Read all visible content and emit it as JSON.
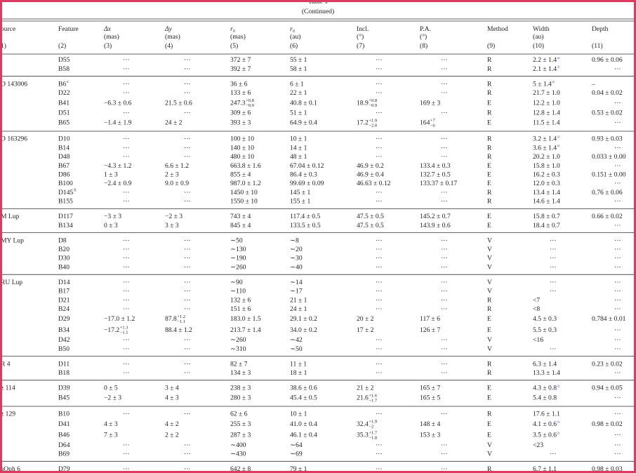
{
  "header": {
    "title": "Table 1",
    "subtitle": "(Continued)",
    "columns": [
      {
        "name": "ource",
        "number": "1)"
      },
      {
        "name": "Feature",
        "number": "(2)"
      },
      {
        "name": "Δx",
        "unit": "(mas)",
        "number": "(3)"
      },
      {
        "name": "Δy",
        "unit": "(mas)",
        "number": "(4)"
      },
      {
        "name": "r₀",
        "unit": "(mas)",
        "number": "(5)"
      },
      {
        "name": "r₀",
        "unit": "(au)",
        "number": "(6)"
      },
      {
        "name": "Incl.",
        "unit": "(°)",
        "number": "(7)"
      },
      {
        "name": "P.A.",
        "unit": "(°)",
        "number": "(8)"
      },
      {
        "name": "Method",
        "number": "(9)"
      },
      {
        "name": "Width",
        "unit": "(au)",
        "number": "(10)"
      },
      {
        "name": "Depth",
        "number": "(11)"
      }
    ]
  },
  "table": {
    "groups": [
      {
        "rows": [
          [
            "D55",
            "···",
            "···",
            "372 ± 7",
            "55 ± 1",
            "···",
            "···",
            "R",
            {
              "text": "2.2 ± 1.4",
              "note": "a"
            },
            "0.96 ± 0.06"
          ],
          [
            "B58",
            "···",
            "···",
            "392 ± 7",
            "58 ± 1",
            "···",
            "···",
            "R",
            {
              "text": "2.1 ± 1.4",
              "note": "a"
            },
            "···"
          ]
        ]
      },
      {
        "source": "D 143006",
        "rows": [
          [
            {
              "text": "B6",
              "note": "c"
            },
            "···",
            "···",
            "36 ± 6",
            "6 ± 1",
            "···",
            "···",
            "R",
            {
              "text": "5 ± 1.4",
              "note": "a"
            },
            "–"
          ],
          [
            "D22",
            "···",
            "···",
            "133 ± 6",
            "22 ± 1",
            "···",
            "···",
            "R",
            "21.7 ± 1.0",
            "0.04 ± 0.02"
          ],
          [
            "B41",
            "−6.3 ± 0.6",
            "21.5 ± 0.6",
            {
              "text": "247.3",
              "sup": "+0.8",
              "sub": "−0.9"
            },
            "40.8 ± 0.1",
            {
              "text": "18.9",
              "sup": "+0.8",
              "sub": "−0.9"
            },
            "169 ± 3",
            "E",
            "12.2 ± 1.0",
            "···"
          ],
          [
            "D51",
            "···",
            "···",
            "309 ± 6",
            "51 ± 1",
            "···",
            "···",
            "R",
            "12.8 ± 1.4",
            "0.53 ± 0.02"
          ],
          [
            "B65",
            "−1.4 ± 1.9",
            "24 ± 2",
            "393 ± 3",
            "64.9 ± 0.4",
            {
              "text": "17.2",
              "sup": "+1.9",
              "sub": "−2.0"
            },
            {
              "text": "164",
              "sup": "+7",
              "sub": "−6"
            },
            "E",
            "11.5 ± 1.4",
            "···"
          ]
        ]
      },
      {
        "source": "D 163296",
        "rows": [
          [
            "D10",
            "···",
            "···",
            "100 ± 10",
            "10 ± 1",
            "···",
            "···",
            "R",
            {
              "text": "3.2 ± 1.4",
              "note": "a"
            },
            "0.93 ± 0.03"
          ],
          [
            "B14",
            "···",
            "···",
            "140 ± 10",
            "14 ± 1",
            "···",
            "···",
            "R",
            {
              "text": "3.6 ± 1.4",
              "note": "a"
            },
            "···"
          ],
          [
            "D48",
            "···",
            "···",
            "480 ± 10",
            "48 ± 1",
            "···",
            "···",
            "R",
            "20.2 ± 1.0",
            "0.033 ± 0.00"
          ],
          [
            "B67",
            "−4.3 ± 1.2",
            "6.6 ± 1.2",
            "663.8 ± 1.6",
            "67.04 ± 0.12",
            "46.9 ± 0.2",
            "133.4 ± 0.3",
            "E",
            "15.8 ± 1.0",
            "···"
          ],
          [
            "D86",
            "1 ± 3",
            "2 ± 3",
            "855 ± 4",
            "86.4 ± 0.3",
            "46.9 ± 0.4",
            "132.7 ± 0.5",
            "E",
            "16.2 ± 0.3",
            "0.151 ± 0.00"
          ],
          [
            "B100",
            "−2.4 ± 0.9",
            "9.0 ± 0.9",
            "987.0 ± 1.2",
            "99.69 ± 0.09",
            "46.63 ± 0.12",
            "133.37 ± 0.17",
            "E",
            "12.0 ± 0.3",
            "···"
          ],
          [
            {
              "text": "D145",
              "note": "b"
            },
            "···",
            "···",
            "1450 ± 10",
            "145 ± 1",
            "···",
            "···",
            "R",
            "13.4 ± 1.4",
            "0.76 ± 0.06"
          ],
          [
            "B155",
            "···",
            "···",
            "1550 ± 10",
            "155 ± 1",
            "···",
            "···",
            "R",
            "14.6 ± 1.4",
            "···"
          ]
        ]
      },
      {
        "source": "M Lup",
        "rows": [
          [
            "D117",
            "−3 ± 3",
            "−2 ± 3",
            "743 ± 4",
            "117.4 ± 0.5",
            "47.5 ± 0.5",
            "145.2 ± 0.7",
            "E",
            "15.8 ± 0.7",
            "0.66 ± 0.02"
          ],
          [
            "B134",
            "0 ± 3",
            "3 ± 3",
            "845 ± 4",
            "133.5 ± 0.5",
            "47.5 ± 0.5",
            "143.9 ± 0.6",
            "E",
            "18.4 ± 0.7",
            "···"
          ]
        ]
      },
      {
        "source": "MY Lup",
        "rows": [
          [
            "D8",
            "···",
            "···",
            "∼50",
            "∼8",
            "···",
            "···",
            "V",
            "···",
            "···"
          ],
          [
            "B20",
            "···",
            "···",
            "∼130",
            "∼20",
            "···",
            "···",
            "V",
            "···",
            "···"
          ],
          [
            "D30",
            "···",
            "···",
            "∼190",
            "∼30",
            "···",
            "···",
            "V",
            "···",
            "···"
          ],
          [
            "B40",
            "···",
            "···",
            "∼260",
            "∼40",
            "···",
            "···",
            "V",
            "···",
            "···"
          ]
        ]
      },
      {
        "source": "RU Lup",
        "rows": [
          [
            "D14",
            "···",
            "···",
            "∼90",
            "∼14",
            "···",
            "···",
            "V",
            "···",
            "···"
          ],
          [
            "B17",
            "···",
            "···",
            "∼110",
            "∼17",
            "···",
            "···",
            "V",
            "···",
            "···"
          ],
          [
            "D21",
            "···",
            "···",
            "132 ± 6",
            "21 ± 1",
            "···",
            "···",
            "R",
            "<7",
            "···"
          ],
          [
            "B24",
            "···",
            "···",
            "151 ± 6",
            "24 ± 1",
            "···",
            "···",
            "R",
            "<8",
            "···"
          ],
          [
            "D29",
            "−17.0 ± 1.2",
            {
              "text": "87.8",
              "sup": "+1.2",
              "sub": "−1.1"
            },
            "183.0 ± 1.5",
            "29.1 ± 0.2",
            "20 ± 2",
            "117 ± 6",
            "E",
            "4.5 ± 0.3",
            "0.784 ± 0.01"
          ],
          [
            "B34",
            {
              "text": "−17.2",
              "sup": "+1.3",
              "sub": "−1.1"
            },
            "88.4 ± 1.2",
            "213.7 ± 1.4",
            "34.0 ± 0.2",
            "17 ± 2",
            "126 ± 7",
            "E",
            "5.5 ± 0.3",
            "···"
          ],
          [
            "D42",
            "···",
            "···",
            "∼260",
            "∼42",
            "···",
            "···",
            "V",
            "<16",
            "···"
          ],
          [
            "B50",
            "···",
            "···",
            "∼310",
            "∼50",
            "···",
            "···",
            "V",
            "···",
            "···"
          ]
        ]
      },
      {
        "source": "R 4",
        "rows": [
          [
            "D11",
            "···",
            "···",
            "82 ± 7",
            "11 ± 1",
            "···",
            "···",
            "R",
            "6.3 ± 1.4",
            "0.23 ± 0.02"
          ],
          [
            "B18",
            "···",
            "···",
            "134 ± 3",
            "18 ± 1",
            "···",
            "···",
            "R",
            "13.3 ± 1.4",
            "···"
          ]
        ]
      },
      {
        "source": "z 114",
        "rows": [
          [
            "D39",
            "0 ± 5",
            "3 ± 4",
            "238 ± 3",
            "38.6 ± 0.6",
            "21 ± 2",
            "165 ± 7",
            "E",
            {
              "text": "4.3 ± 0.8",
              "note": "a"
            },
            "0.94 ± 0.05"
          ],
          [
            "B45",
            "−2 ± 3",
            "4 ± 3",
            "280 ± 3",
            "45.4 ± 0.5",
            {
              "text": "21.6",
              "sup": "+1.6",
              "sub": "−1.7"
            },
            "165 ± 5",
            "E",
            "5.4 ± 0.8",
            "···"
          ]
        ]
      },
      {
        "source": "z 129",
        "rows": [
          [
            "B10",
            "···",
            "···",
            "62 ± 6",
            "10 ± 1",
            "···",
            "···",
            "R",
            "17.6 ± 1.1",
            "···"
          ],
          [
            "D41",
            "4 ± 3",
            "4 ± 2",
            "255 ± 3",
            "41.0 ± 0.4",
            {
              "text": "32.4",
              "sup": "+1.9",
              "sub": "−2"
            },
            "148 ± 4",
            "E",
            {
              "text": "4.1 ± 0.6",
              "note": "a"
            },
            "0.98 ± 0.02"
          ],
          [
            "B46",
            "7 ± 3",
            "2 ± 2",
            "287 ± 3",
            "46.1 ± 0.4",
            {
              "text": "35.3",
              "sup": "+1.7",
              "sub": "−1.8"
            },
            "153 ± 3",
            "E",
            {
              "text": "3.5 ± 0.6",
              "note": "a"
            },
            "···"
          ],
          [
            "D64",
            "···",
            "···",
            "∼400",
            "∼64",
            "···",
            "···",
            "V",
            "<23",
            "···"
          ],
          [
            "B69",
            "···",
            "···",
            "∼430",
            "∼69",
            "···",
            "···",
            "V",
            "···",
            "···"
          ]
        ]
      },
      {
        "source": "aOph 6",
        "rows": [
          [
            "D79",
            "···",
            "···",
            "642 ± 8",
            "79 ± 1",
            "···",
            "···",
            "R",
            "6.7 ± 1.1",
            "0.98 ± 0.03"
          ]
        ]
      }
    ]
  }
}
